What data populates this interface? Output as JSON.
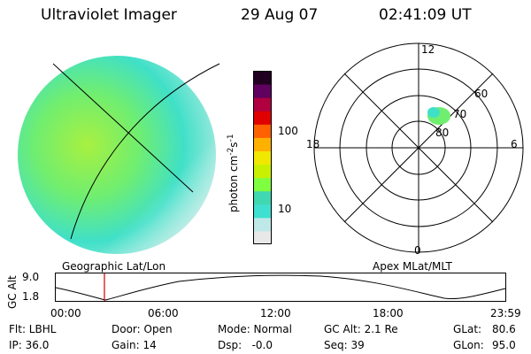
{
  "header": {
    "instrument": "Ultraviolet Imager",
    "date": "29 Aug 07",
    "time": "02:41:09 UT"
  },
  "colorbar": {
    "unit_label": "photon cm",
    "unit_exp1": "-2",
    "unit_mid": "s",
    "unit_exp2": "-1",
    "tick_100": "100",
    "tick_10": "10",
    "stops": [
      "#e8e8e8",
      "#bfe8e8",
      "#40e0d0",
      "#40d8b0",
      "#80ff40",
      "#c8f000",
      "#f0e800",
      "#ffb000",
      "#ff6000",
      "#e00000",
      "#b00040",
      "#600060",
      "#200020"
    ]
  },
  "image_panel": {
    "caption": "Geographic Lat/Lon"
  },
  "polar_panel": {
    "caption": "Apex MLat/MLT",
    "mlt_12": "12",
    "mlt_18": "18",
    "mlt_6": "6",
    "mlt_0": "0",
    "lat_60": "60",
    "lat_70": "70",
    "lat_80": "80"
  },
  "altitude_plot": {
    "ylabel": "GC Alt",
    "y_max": "9.0",
    "y_min": "1.8",
    "x_ticks": [
      "00:00",
      "06:00",
      "12:00",
      "18:00",
      "23:59"
    ],
    "current_time_marker_color": "#d00000"
  },
  "footer": {
    "flt": "Flt: LBHL",
    "door": "Door: Open",
    "mode": "Mode: Normal",
    "gc_alt": "GC Alt: 2.1 Re",
    "glat_label": "GLat:",
    "glat": "80.6",
    "ip": "IP: 36.0",
    "gain": "Gain: 14",
    "dsp": "Dsp:   -0.0",
    "seq": "Seq: 39",
    "glon_label": "GLon:",
    "glon": "95.0"
  }
}
